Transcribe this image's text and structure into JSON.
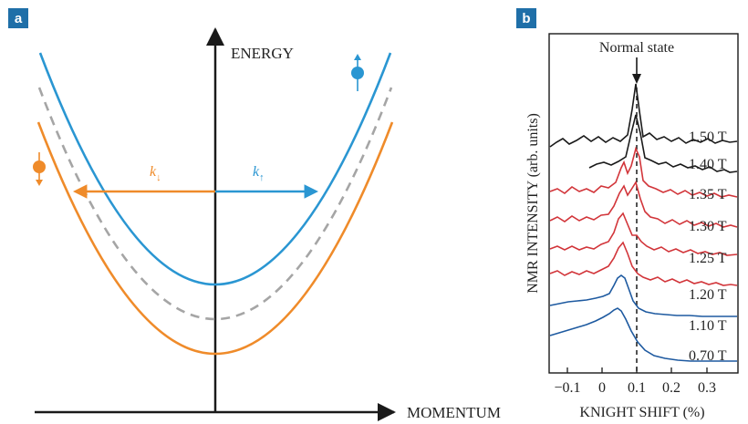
{
  "panel_a": {
    "tag": "a",
    "y_axis_label": "ENERGY",
    "x_axis_label": "MOMENTUM",
    "k_down_label": "k",
    "k_down_sub": "↓",
    "k_up_label": "k",
    "k_up_sub": "↑",
    "colors": {
      "spin_up": "#2a96d2",
      "spin_down": "#ef8b2a",
      "unpolarized": "#a5a5a5",
      "axis": "#1a1a1a"
    },
    "icons": [
      "spin-up-icon",
      "spin-down-icon"
    ]
  },
  "panel_b": {
    "tag": "b",
    "title": "Normal state",
    "ylabel": "NMR INTENSITY (arb. units)",
    "xlabel": "KNIGHT SHIFT (%)",
    "chart_data": {
      "type": "line",
      "xlabel": "KNIGHT SHIFT (%)",
      "ylabel": "NMR INTENSITY (arb. units)",
      "xlim": [
        -0.15,
        0.35
      ],
      "xticks": [
        -0.1,
        0.0,
        0.1,
        0.2,
        0.3
      ],
      "xtick_labels": [
        "−0.1",
        "0",
        "0.1",
        "0.2",
        "0.3"
      ],
      "normal_state_shift": 0.08,
      "series": [
        {
          "name": "1.50 T",
          "color": "#1a1a1a",
          "peak_shift": 0.08,
          "label": "1.50 T"
        },
        {
          "name": "1.40 T",
          "color": "#1a1a1a",
          "peak_shift": 0.08,
          "label": "1.40 T"
        },
        {
          "name": "1.35 T",
          "color": "#d2353a",
          "peak_shift": 0.08,
          "label": "1.35 T"
        },
        {
          "name": "1.30 T",
          "color": "#d2353a",
          "peak_shift": 0.075,
          "label": "1.30 T"
        },
        {
          "name": "1.25 T",
          "color": "#d2353a",
          "peak_shift": 0.05,
          "label": "1.25 T"
        },
        {
          "name": "1.20 T",
          "color": "#d2353a",
          "peak_shift": 0.05,
          "label": "1.20 T"
        },
        {
          "name": "1.10 T",
          "color": "#1e5aa0",
          "peak_shift": 0.05,
          "label": "1.10 T"
        },
        {
          "name": "0.70 T",
          "color": "#1e5aa0",
          "peak_shift": 0.035,
          "label": "0.70 T"
        }
      ]
    }
  }
}
